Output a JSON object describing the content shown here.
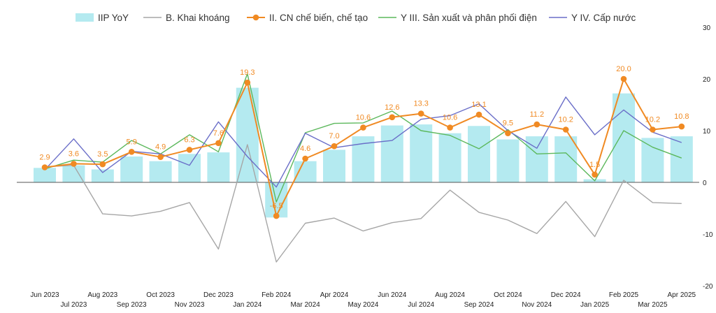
{
  "chart_data": {
    "type": "bar",
    "categories": [
      "Jun 2023",
      "Jul 2023",
      "Aug 2023",
      "Sep 2023",
      "Oct 2023",
      "Nov 2023",
      "Dec 2023",
      "Jan 2024",
      "Feb 2024",
      "Mar 2024",
      "Apr 2024",
      "May 2024",
      "Jun 2024",
      "Jul 2024",
      "Aug 2024",
      "Sep 2024",
      "Oct 2024",
      "Nov 2024",
      "Dec 2024",
      "Jan 2025",
      "Feb 2025",
      "Mar 2025",
      "Apr 2025"
    ],
    "ylim": [
      -20,
      30
    ],
    "yticks": [
      30,
      20,
      10,
      0,
      -10,
      -20
    ],
    "y_axis_position": "right",
    "grid": false,
    "legend_position": "top",
    "series": [
      {
        "name": "IIP YoY",
        "kind": "bar",
        "color": "#b4eaf0",
        "values": [
          2.8,
          3.3,
          2.5,
          5.0,
          4.1,
          5.5,
          5.8,
          18.3,
          -6.8,
          4.1,
          6.3,
          8.9,
          11.0,
          11.2,
          9.5,
          10.9,
          8.3,
          8.9,
          8.9,
          0.6,
          17.2,
          8.6,
          8.9
        ]
      },
      {
        "name": "B. Khai khoáng",
        "kind": "line",
        "color": "#a6a6a6",
        "values": [
          3.0,
          3.3,
          -6.1,
          -6.5,
          -5.6,
          -3.9,
          -12.9,
          7.3,
          -15.4,
          -7.9,
          -6.9,
          -9.4,
          -7.8,
          -7.0,
          -1.5,
          -5.8,
          -7.3,
          -9.9,
          -3.7,
          -10.5,
          0.4,
          -3.9,
          -4.1
        ]
      },
      {
        "name": "II. CN chế biến, chế tạo",
        "kind": "line",
        "color": "#f08a23",
        "markers": true,
        "values": [
          2.9,
          3.6,
          3.5,
          5.9,
          4.9,
          6.3,
          7.6,
          19.3,
          -6.5,
          4.6,
          7.0,
          10.6,
          12.6,
          13.3,
          10.6,
          13.1,
          9.5,
          11.2,
          10.2,
          1.5,
          20.0,
          10.2,
          10.8
        ],
        "labels": [
          "2.9",
          "3.6",
          "3.5",
          "5.9",
          "4.9",
          "6.3",
          "7.6",
          "19.3",
          "-6.5",
          "4.6",
          "7.0",
          "10.6",
          "12.6",
          "13.3",
          "10.6",
          "13.1",
          "9.5",
          "11.2",
          "10.2",
          "1.5",
          "20.0",
          "10.2",
          "10.8"
        ]
      },
      {
        "name": "Y III. Sản xuất và phân phối điện",
        "kind": "line",
        "color": "#5cb85c",
        "values": [
          2.6,
          4.3,
          3.9,
          8.1,
          5.5,
          9.2,
          5.9,
          21.0,
          -3.8,
          9.6,
          11.4,
          11.5,
          13.8,
          10.0,
          9.1,
          6.5,
          10.2,
          5.5,
          5.7,
          0.3,
          10.0,
          6.8,
          4.7
        ]
      },
      {
        "name": "Y IV. Cấp nước",
        "kind": "line",
        "color": "#6a6ec8",
        "values": [
          2.4,
          8.4,
          1.9,
          6.0,
          5.5,
          3.3,
          11.7,
          5.0,
          -0.9,
          9.5,
          6.7,
          7.5,
          8.1,
          12.2,
          12.9,
          15.2,
          10.0,
          6.6,
          16.5,
          9.2,
          14.0,
          9.7,
          7.7
        ]
      }
    ]
  }
}
